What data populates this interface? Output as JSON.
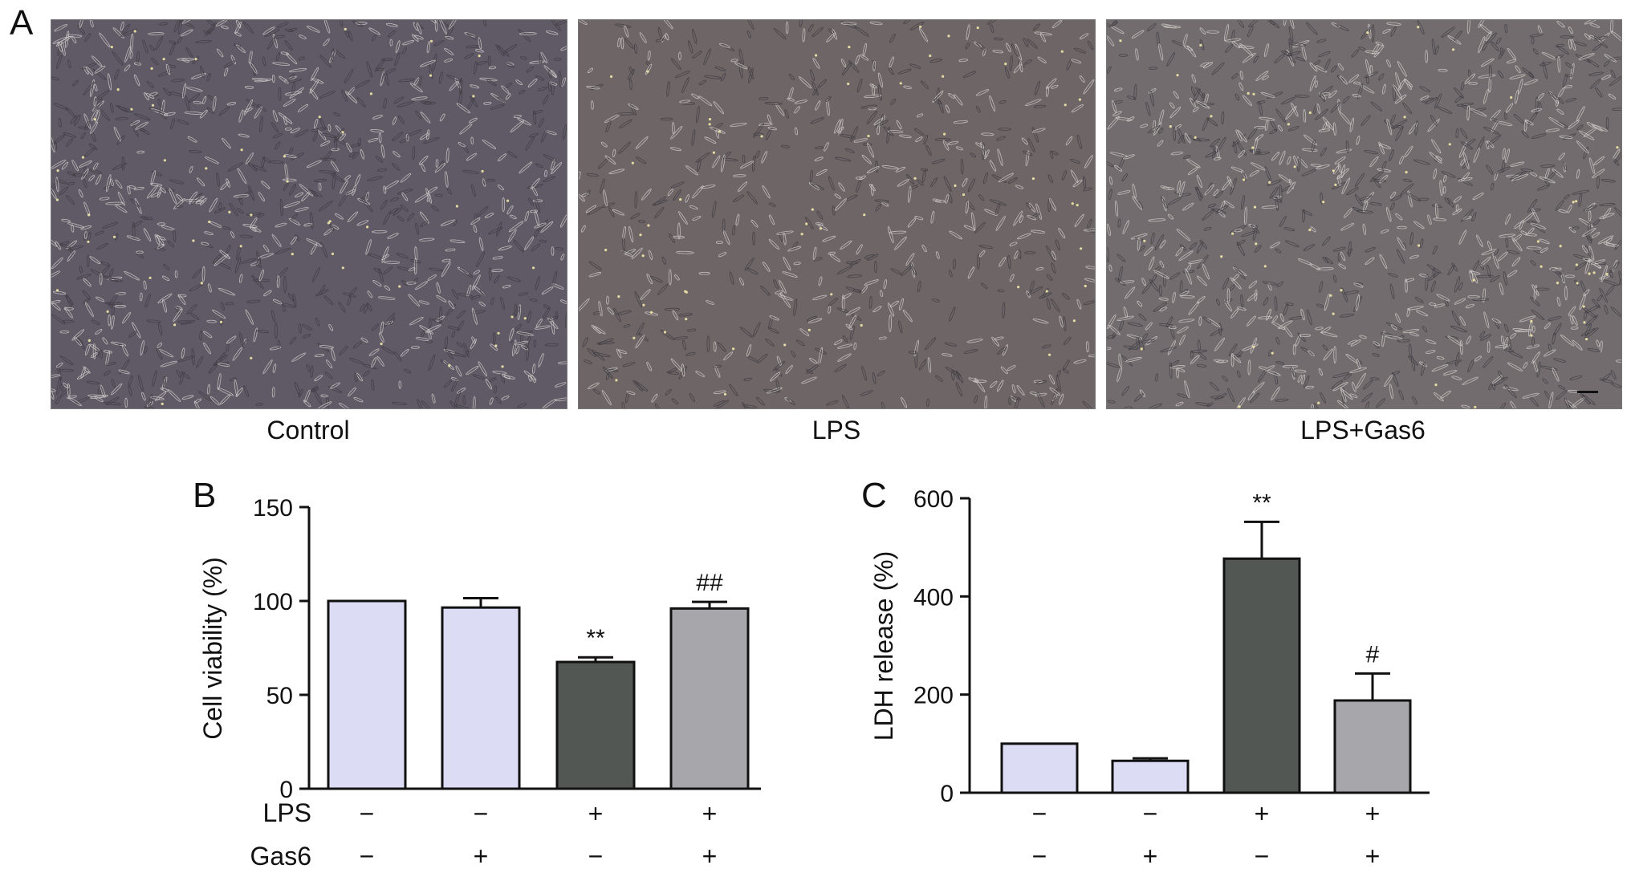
{
  "panel_a": {
    "letter": "A",
    "images": [
      {
        "label": "Control",
        "tint": "#5f5a66",
        "density": "high"
      },
      {
        "label": "LPS",
        "tint": "#6d6566",
        "density": "medium"
      },
      {
        "label": "LPS+Gas6",
        "tint": "#726c6e",
        "density": "high"
      }
    ]
  },
  "row_labels": {
    "lps": "LPS",
    "gas6": "Gas6"
  },
  "signs": {
    "minus": "−",
    "plus": "+"
  },
  "chart_data": [
    {
      "type": "bar",
      "panel": "B",
      "ylabel": "Cell viability (%)",
      "ylim": [
        0,
        150
      ],
      "yticks": [
        0,
        50,
        100,
        150
      ],
      "groups": [
        {
          "lps": "−",
          "gas6": "−",
          "value": 100,
          "error": 0,
          "annotation": "",
          "color": "#dcdcf5"
        },
        {
          "lps": "−",
          "gas6": "+",
          "value": 96.5,
          "error": 5,
          "annotation": "",
          "color": "#dcdcf5"
        },
        {
          "lps": "+",
          "gas6": "−",
          "value": 67.5,
          "error": 2.5,
          "annotation": "**",
          "color": "#525753"
        },
        {
          "lps": "+",
          "gas6": "+",
          "value": 96,
          "error": 3.5,
          "annotation": "##",
          "color": "#a7a7ab"
        }
      ]
    },
    {
      "type": "bar",
      "panel": "C",
      "ylabel": "LDH release (%)",
      "ylim": [
        0,
        600
      ],
      "yticks": [
        0,
        200,
        400,
        600
      ],
      "groups": [
        {
          "lps": "−",
          "gas6": "−",
          "value": 100,
          "error": 0,
          "annotation": "",
          "color": "#dcdcf5"
        },
        {
          "lps": "−",
          "gas6": "+",
          "value": 65,
          "error": 5,
          "annotation": "",
          "color": "#dcdcf5"
        },
        {
          "lps": "+",
          "gas6": "−",
          "value": 477,
          "error": 75,
          "annotation": "**",
          "color": "#525753"
        },
        {
          "lps": "+",
          "gas6": "+",
          "value": 188,
          "error": 55,
          "annotation": "#",
          "color": "#a7a7ab"
        }
      ]
    }
  ]
}
